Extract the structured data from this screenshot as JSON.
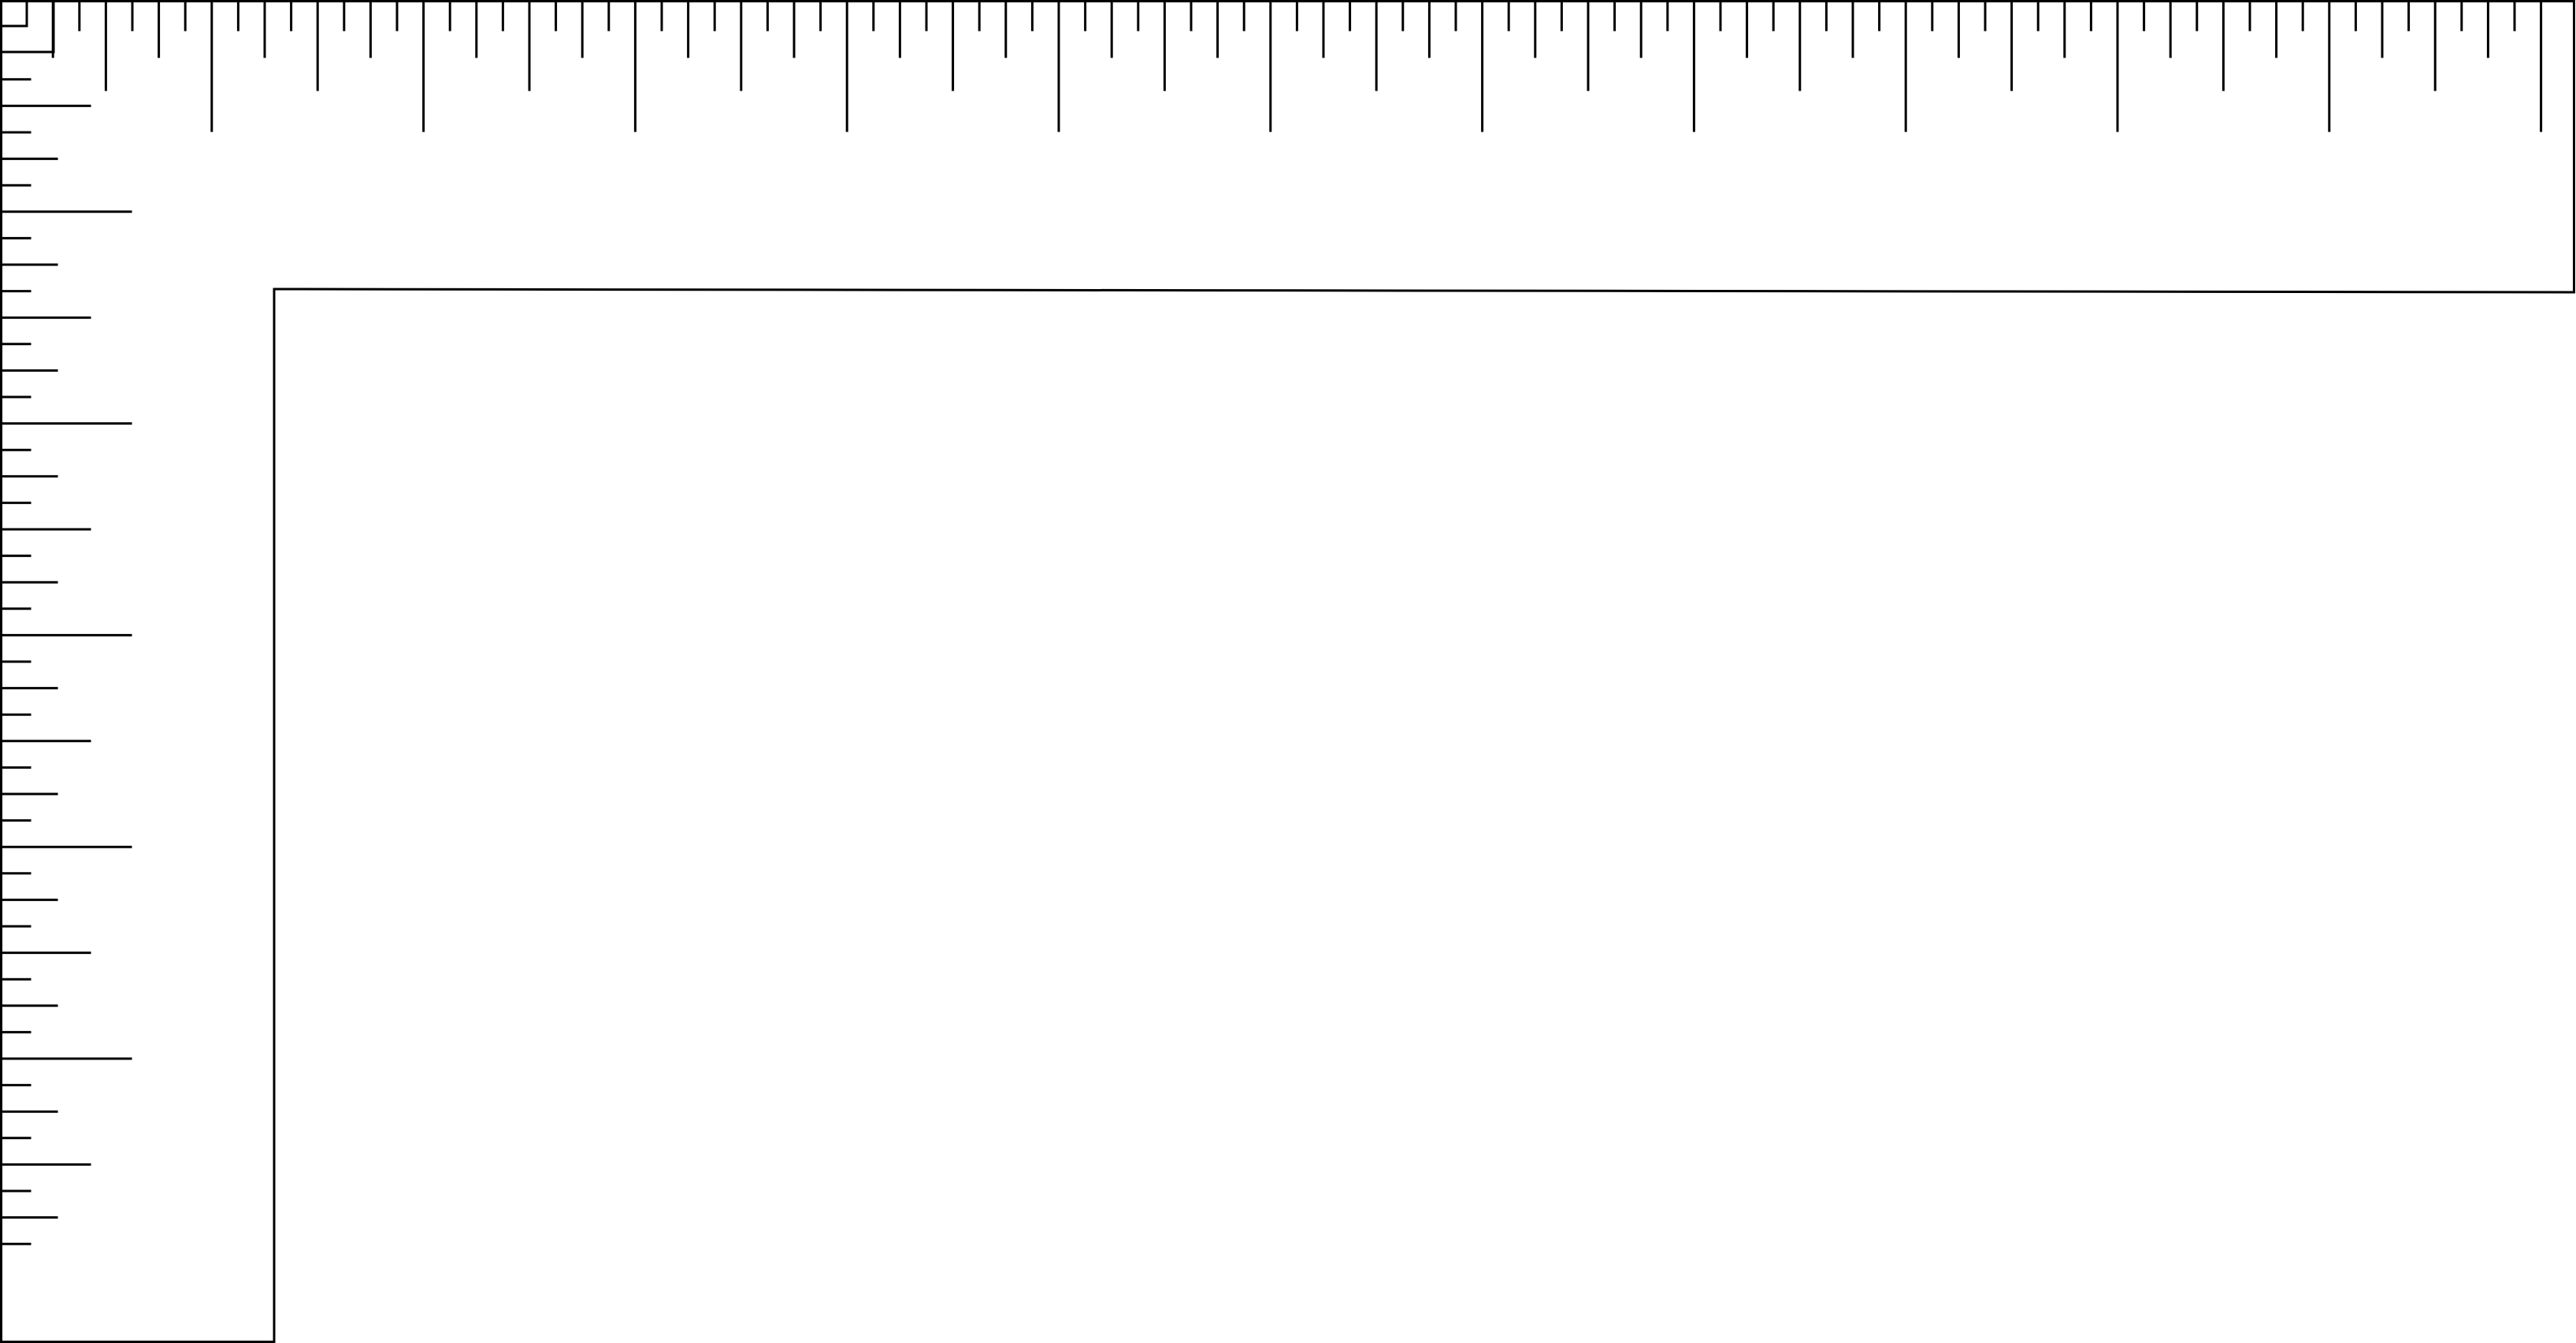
{
  "diagram": {
    "subject": "carpenter-square-ruler",
    "stroke_color": "#000000",
    "background_color": "#ffffff",
    "top_ruler": {
      "tick_count": 96,
      "subdivisions_per_major": 8
    },
    "side_ruler": {
      "tick_count": 47,
      "subdivisions_per_major": 8
    },
    "corner_marks": 2
  }
}
